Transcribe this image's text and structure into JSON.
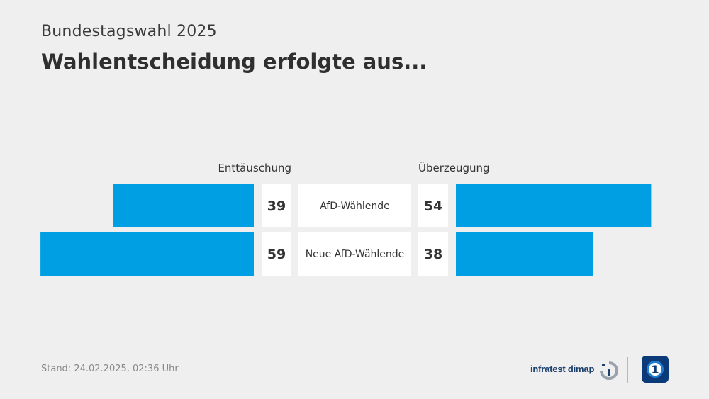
{
  "header": {
    "supertitle": "Bundestagswahl 2025",
    "title": "Wahlentscheidung erfolgte aus..."
  },
  "chart_data": {
    "type": "bar",
    "orientation": "horizontal-diverging",
    "title": "Wahlentscheidung erfolgte aus...",
    "categories": [
      "AfD-Wählende",
      "Neue AfD-Wählende"
    ],
    "series": [
      {
        "name": "Enttäuschung",
        "values": [
          39,
          59
        ]
      },
      {
        "name": "Überzeugung",
        "values": [
          54,
          38
        ]
      }
    ],
    "unit": "%",
    "bar_color": "#009fe3"
  },
  "footer": {
    "stand": "Stand:  24.02.2025, 02:36 Uhr"
  },
  "logos": {
    "infratest": "infratest dimap",
    "infratest_icon": "infratest-dimap-logo-icon",
    "ard_icon": "ard-logo-icon"
  }
}
